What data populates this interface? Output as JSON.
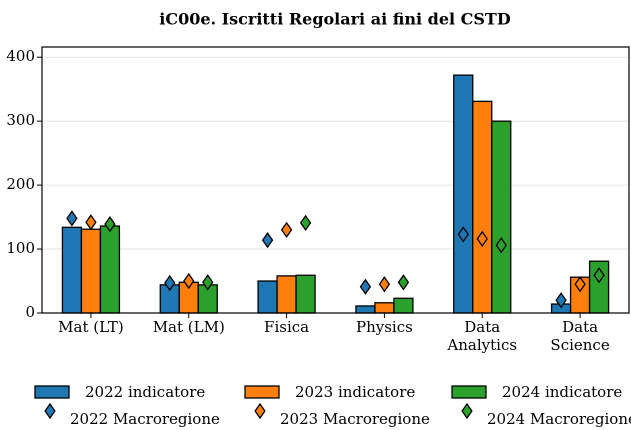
{
  "chart_data": {
    "type": "bar",
    "title": "iC00e. Iscritti Regolari ai fini del CSTD",
    "categories": [
      "Mat (LT)",
      "Mat (LM)",
      "Fisica",
      "Physics",
      "Data Analytics",
      "Data Science"
    ],
    "series": [
      {
        "name": "2022 indicatore",
        "type": "bar",
        "color": "#1f77b4",
        "values": [
          134,
          44,
          50,
          11,
          372,
          14
        ]
      },
      {
        "name": "2023 indicatore",
        "type": "bar",
        "color": "#ff7f0e",
        "values": [
          131,
          48,
          58,
          16,
          331,
          56
        ]
      },
      {
        "name": "2024 indicatore",
        "type": "bar",
        "color": "#2ca02c",
        "values": [
          136,
          44,
          59,
          23,
          300,
          81
        ]
      },
      {
        "name": "2022 Macroregione",
        "type": "marker",
        "color": "#1f77b4",
        "values": [
          148,
          47,
          114,
          41,
          123,
          20
        ]
      },
      {
        "name": "2023 Macroregione",
        "type": "marker",
        "color": "#ff7f0e",
        "values": [
          142,
          50,
          130,
          45,
          116,
          45
        ]
      },
      {
        "name": "2024 Macroregione",
        "type": "marker",
        "color": "#2ca02c",
        "values": [
          139,
          48,
          141,
          48,
          106,
          59
        ]
      }
    ],
    "ylim": [
      0,
      416
    ],
    "yticks": [
      0,
      100,
      200,
      300,
      400
    ],
    "grid": true
  }
}
